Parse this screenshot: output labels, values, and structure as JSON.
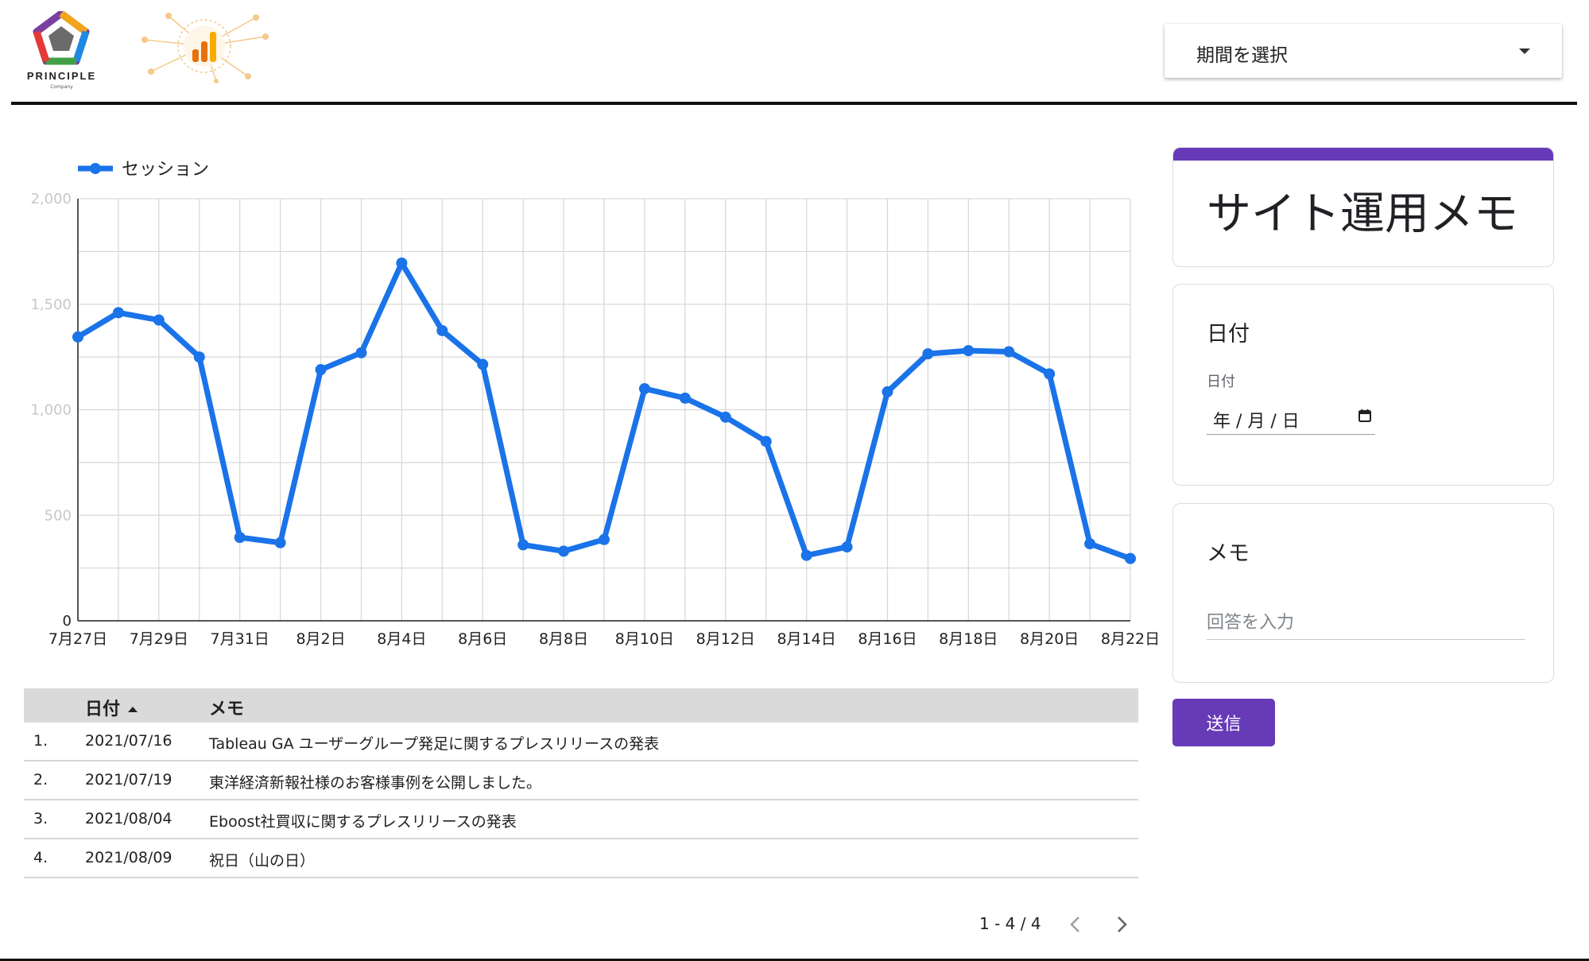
{
  "header": {
    "logo_text": "PRINCIPLE",
    "logo_subtext": "Company",
    "period_select_label": "期間を選択"
  },
  "chart_data": {
    "type": "line",
    "legend": "top-left",
    "grid": true,
    "series": [
      {
        "name": "セッション",
        "color": "#1a73e8",
        "values": [
          1345,
          1460,
          1425,
          1250,
          395,
          370,
          1190,
          1270,
          1695,
          1375,
          1215,
          360,
          330,
          385,
          1100,
          1055,
          965,
          850,
          310,
          350,
          1085,
          1265,
          1280,
          1275,
          1170,
          365,
          295
        ]
      }
    ],
    "x_tick_labels": [
      "7月27日",
      "7月29日",
      "7月31日",
      "8月2日",
      "8月4日",
      "8月6日",
      "8月8日",
      "8月10日",
      "8月12日",
      "8月14日",
      "8月16日",
      "8月18日",
      "8月20日",
      "8月22日"
    ],
    "y_ticks": [
      0,
      500,
      1000,
      1500,
      2000
    ],
    "y_tick_labels": [
      "0",
      "500",
      "1,000",
      "1,500",
      "2,000"
    ],
    "ylim": [
      0,
      2000
    ]
  },
  "table": {
    "headers": {
      "date": "日付",
      "memo": "メモ"
    },
    "rows": [
      {
        "index": "1.",
        "date": "2021/07/16",
        "memo": "Tableau GA ユーザーグループ発足に関するプレスリリースの発表"
      },
      {
        "index": "2.",
        "date": "2021/07/19",
        "memo": "東洋経済新報社様のお客様事例を公開しました。"
      },
      {
        "index": "3.",
        "date": "2021/08/04",
        "memo": "Eboost社買収に関するプレスリリースの発表"
      },
      {
        "index": "4.",
        "date": "2021/08/09",
        "memo": "祝日（山の日）"
      }
    ],
    "pagination": "1 - 4 / 4"
  },
  "form": {
    "title": "サイト運用メモ",
    "accent_color": "#673ab7",
    "date_question": "日付",
    "date_sublabel": "日付",
    "date_placeholder": "年 / 月 / 日",
    "memo_question": "メモ",
    "memo_placeholder": "回答を入力",
    "submit_label": "送信"
  }
}
